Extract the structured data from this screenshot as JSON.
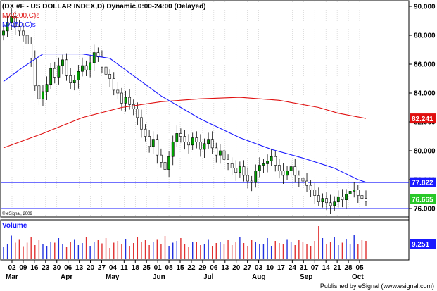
{
  "header": {
    "title": "(DX #F - US DOLLAR INDEX,D) Dynamic,0:00-24:00 (Delayed)",
    "ma200_label": "MA(200,C)s",
    "ma50_label": "MA(50,C)s"
  },
  "copyright": "© eSignal, 2009",
  "footer": "Published by eSignal (www.esignal.com)",
  "volume_label": "Volume",
  "colors": {
    "ma200": "#e01010",
    "ma50": "#1a1aff",
    "up_candle": "#00a000",
    "down_candle": "#000000",
    "volume_up": "#2030e0",
    "volume_down": "#e03030",
    "price_badge": "#28c828",
    "ma200_badge": "#e01010",
    "ma50_badge": "#1a1aff",
    "volume_badge": "#1a1aff"
  },
  "chart_data": [
    {
      "type": "candlestick",
      "title": "(DX #F - US DOLLAR INDEX,D) Dynamic,0:00-24:00 (Delayed)",
      "ylim": [
        75.5,
        90.2
      ],
      "y_ticks": [
        "90.000",
        "88.000",
        "86.000",
        "84.000",
        "82.000",
        "80.000",
        "78.000",
        "76.000"
      ],
      "x_tick_labels": [
        "02",
        "09",
        "16",
        "23",
        "30",
        "06",
        "13",
        "20",
        "27",
        "04",
        "11",
        "18",
        "25",
        "01",
        "08",
        "15",
        "22",
        "29",
        "06",
        "13",
        "20",
        "27",
        "03",
        "10",
        "17",
        "24",
        "31",
        "07",
        "14",
        "21",
        "28",
        "05"
      ],
      "month_labels": [
        "Mar",
        "Apr",
        "May",
        "Jun",
        "Jul",
        "Aug",
        "Sep",
        "Oct"
      ],
      "close_values": [
        88.3,
        88.9,
        89.3,
        88.6,
        88.3,
        88.0,
        87.4,
        86.4,
        84.5,
        83.6,
        84.1,
        84.6,
        85.7,
        85.1,
        85.9,
        86.3,
        85.2,
        84.7,
        84.9,
        85.5,
        85.9,
        85.6,
        86.1,
        86.8,
        86.5,
        85.8,
        85.3,
        85.0,
        84.2,
        84.0,
        83.3,
        83.7,
        83.2,
        82.9,
        82.3,
        81.5,
        81.0,
        80.3,
        80.8,
        79.7,
        79.2,
        78.7,
        79.6,
        80.6,
        81.2,
        81.0,
        80.6,
        80.4,
        80.9,
        80.6,
        80.1,
        80.5,
        80.8,
        80.2,
        79.7,
        80.0,
        79.4,
        79.1,
        78.8,
        78.5,
        78.9,
        78.3,
        77.9,
        77.8,
        78.6,
        79.0,
        79.1,
        79.3,
        79.6,
        79.0,
        78.6,
        78.3,
        78.6,
        78.9,
        78.3,
        78.1,
        77.9,
        77.6,
        77.3,
        76.9,
        76.5,
        76.7,
        76.4,
        76.2,
        76.5,
        76.8,
        76.6,
        77.0,
        77.2,
        77.3,
        76.9,
        76.7,
        76.5
      ],
      "ma200": {
        "name": "MA(200,C)s",
        "points": [
          [
            0,
            80.2
          ],
          [
            10,
            81.2
          ],
          [
            20,
            82.3
          ],
          [
            30,
            83.0
          ],
          [
            40,
            83.4
          ],
          [
            50,
            83.6
          ],
          [
            60,
            83.7
          ],
          [
            70,
            83.5
          ],
          [
            80,
            83.0
          ],
          [
            85,
            82.6
          ],
          [
            92,
            82.24
          ]
        ]
      },
      "ma50": {
        "name": "MA(50,C)s",
        "points": [
          [
            0,
            84.8
          ],
          [
            5,
            85.8
          ],
          [
            10,
            86.7
          ],
          [
            20,
            86.7
          ],
          [
            27,
            86.4
          ],
          [
            33,
            85.2
          ],
          [
            40,
            83.8
          ],
          [
            50,
            82.2
          ],
          [
            60,
            80.9
          ],
          [
            68,
            80.1
          ],
          [
            76,
            79.5
          ],
          [
            84,
            78.8
          ],
          [
            90,
            78.0
          ],
          [
            92,
            77.82
          ]
        ]
      },
      "horizontal_lines": [
        77.8,
        76.0
      ],
      "last_values": {
        "price": "76.665",
        "ma200": "82.241",
        "ma50": "77.822"
      }
    },
    {
      "type": "bar",
      "title": "Volume",
      "last_value": "9.251",
      "values_relative": [
        0.33,
        0.4,
        0.65,
        0.45,
        0.55,
        0.35,
        0.45,
        0.6,
        0.38,
        0.52,
        0.42,
        0.36,
        0.48,
        0.45,
        0.58,
        0.4,
        0.32,
        0.47,
        0.55,
        0.38,
        0.44,
        0.62,
        0.36,
        0.48,
        0.52,
        0.43,
        0.58,
        0.3,
        0.45,
        0.5,
        0.4,
        0.56,
        0.36,
        0.44,
        0.6,
        0.48,
        0.52,
        0.38,
        0.47,
        0.55,
        0.42,
        0.64,
        0.36,
        0.45,
        0.5,
        0.58,
        0.4,
        0.34,
        0.48,
        0.46,
        0.38,
        0.42,
        0.55,
        0.36,
        0.44,
        0.48,
        0.4,
        0.52,
        0.38,
        0.46,
        0.62,
        0.44,
        0.36,
        0.52,
        0.48,
        0.4,
        0.42,
        0.58,
        0.36,
        0.5,
        0.44,
        0.4,
        0.55,
        0.46,
        0.38,
        0.52,
        0.48,
        0.42,
        0.36,
        0.5,
        0.92,
        0.58,
        0.4,
        0.48,
        0.62,
        0.38,
        0.45,
        0.56,
        0.42,
        0.66,
        0.4,
        0.52,
        0.5
      ]
    }
  ]
}
